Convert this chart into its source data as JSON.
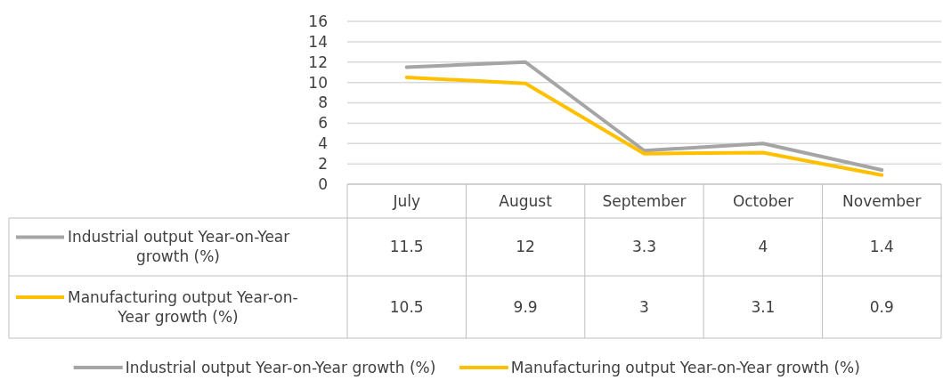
{
  "chart_data": {
    "type": "line",
    "categories": [
      "July",
      "August",
      "September",
      "October",
      "November"
    ],
    "series": [
      {
        "name": "Industrial output Year-on-Year growth (%)",
        "color": "#a5a5a5",
        "values": [
          11.5,
          12,
          3.3,
          4,
          1.4
        ]
      },
      {
        "name": "Manufacturing output Year-on-Year growth (%)",
        "color": "#ffc000",
        "values": [
          10.5,
          9.9,
          3,
          3.1,
          0.9
        ]
      }
    ],
    "ylim": [
      0,
      16
    ],
    "yticks": [
      0,
      2,
      4,
      6,
      8,
      10,
      12,
      14,
      16
    ],
    "grid": "y",
    "legend": "bottom",
    "data_labels": true,
    "line_style": "solid"
  }
}
